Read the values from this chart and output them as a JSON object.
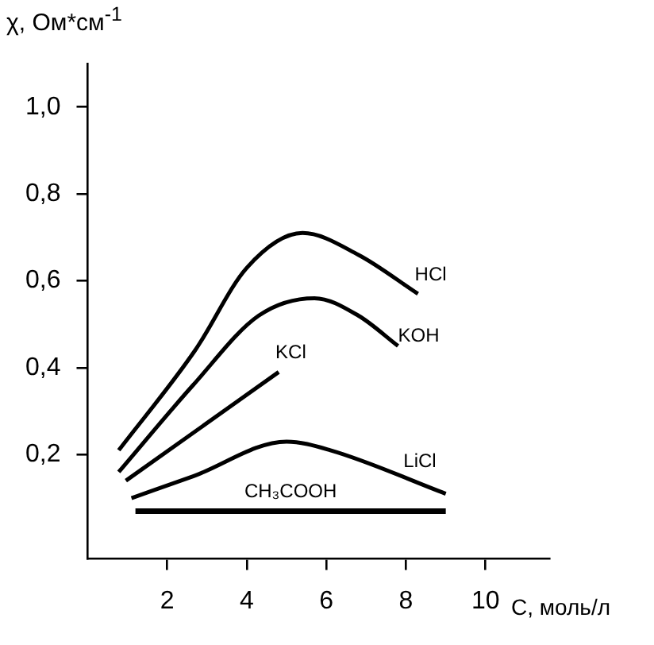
{
  "chart_data": {
    "type": "line",
    "xlabel": "С, моль/л",
    "ylabel": "χ, Ом*см$^{-1}$",
    "xlim": [
      0,
      11.6
    ],
    "ylim": [
      -0.04,
      1.1
    ],
    "xticks": [
      2,
      4,
      6,
      8,
      10
    ],
    "yticks": [
      {
        "value": 0.2,
        "label": "0,2"
      },
      {
        "value": 0.4,
        "label": "0,4"
      },
      {
        "value": 0.6,
        "label": "0,6"
      },
      {
        "value": 0.8,
        "label": "0,8"
      },
      {
        "value": 1.0,
        "label": "1,0"
      }
    ],
    "grid": false,
    "legend": false,
    "marker": "none",
    "line_style": "solid",
    "series": [
      {
        "name": "HCl",
        "color": "#000000",
        "x": [
          0.78,
          2.7,
          4.0,
          5.4,
          6.8,
          8.3
        ],
        "values": [
          0.21,
          0.44,
          0.63,
          0.71,
          0.66,
          0.57
        ]
      },
      {
        "name": "KOH",
        "color": "#000000",
        "x": [
          0.78,
          2.65,
          4.3,
          5.7,
          6.8,
          7.8
        ],
        "values": [
          0.16,
          0.36,
          0.52,
          0.56,
          0.52,
          0.45
        ]
      },
      {
        "name": "KCl",
        "color": "#000000",
        "x": [
          0.96,
          4.8
        ],
        "values": [
          0.14,
          0.39
        ]
      },
      {
        "name": "LiCl",
        "color": "#000000",
        "x": [
          1.1,
          2.65,
          5.0,
          6.1,
          9.0
        ],
        "values": [
          0.1,
          0.15,
          0.23,
          0.21,
          0.11
        ]
      },
      {
        "name": "CH₃COOH",
        "color": "#000000",
        "x": [
          1.2,
          9.0
        ],
        "values": [
          0.07,
          0.07
        ]
      }
    ]
  }
}
